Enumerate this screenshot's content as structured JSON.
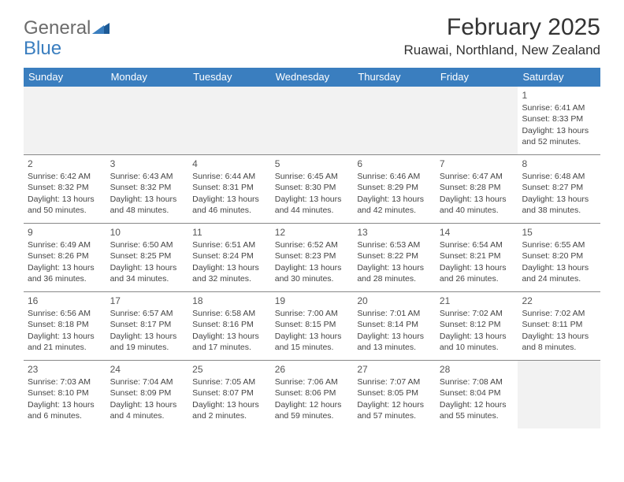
{
  "logo": {
    "text1": "General",
    "text2": "Blue"
  },
  "title": "February 2025",
  "location": "Ruawai, Northland, New Zealand",
  "colors": {
    "header_bg": "#3a7ebf",
    "border": "#888888",
    "empty_bg": "#f2f2f2",
    "text": "#444444"
  },
  "dayNames": [
    "Sunday",
    "Monday",
    "Tuesday",
    "Wednesday",
    "Thursday",
    "Friday",
    "Saturday"
  ],
  "weeks": [
    [
      {
        "empty": true
      },
      {
        "empty": true
      },
      {
        "empty": true
      },
      {
        "empty": true
      },
      {
        "empty": true
      },
      {
        "empty": true
      },
      {
        "day": "1",
        "sunrise": "Sunrise: 6:41 AM",
        "sunset": "Sunset: 8:33 PM",
        "daylight": "Daylight: 13 hours and 52 minutes."
      }
    ],
    [
      {
        "day": "2",
        "sunrise": "Sunrise: 6:42 AM",
        "sunset": "Sunset: 8:32 PM",
        "daylight": "Daylight: 13 hours and 50 minutes."
      },
      {
        "day": "3",
        "sunrise": "Sunrise: 6:43 AM",
        "sunset": "Sunset: 8:32 PM",
        "daylight": "Daylight: 13 hours and 48 minutes."
      },
      {
        "day": "4",
        "sunrise": "Sunrise: 6:44 AM",
        "sunset": "Sunset: 8:31 PM",
        "daylight": "Daylight: 13 hours and 46 minutes."
      },
      {
        "day": "5",
        "sunrise": "Sunrise: 6:45 AM",
        "sunset": "Sunset: 8:30 PM",
        "daylight": "Daylight: 13 hours and 44 minutes."
      },
      {
        "day": "6",
        "sunrise": "Sunrise: 6:46 AM",
        "sunset": "Sunset: 8:29 PM",
        "daylight": "Daylight: 13 hours and 42 minutes."
      },
      {
        "day": "7",
        "sunrise": "Sunrise: 6:47 AM",
        "sunset": "Sunset: 8:28 PM",
        "daylight": "Daylight: 13 hours and 40 minutes."
      },
      {
        "day": "8",
        "sunrise": "Sunrise: 6:48 AM",
        "sunset": "Sunset: 8:27 PM",
        "daylight": "Daylight: 13 hours and 38 minutes."
      }
    ],
    [
      {
        "day": "9",
        "sunrise": "Sunrise: 6:49 AM",
        "sunset": "Sunset: 8:26 PM",
        "daylight": "Daylight: 13 hours and 36 minutes."
      },
      {
        "day": "10",
        "sunrise": "Sunrise: 6:50 AM",
        "sunset": "Sunset: 8:25 PM",
        "daylight": "Daylight: 13 hours and 34 minutes."
      },
      {
        "day": "11",
        "sunrise": "Sunrise: 6:51 AM",
        "sunset": "Sunset: 8:24 PM",
        "daylight": "Daylight: 13 hours and 32 minutes."
      },
      {
        "day": "12",
        "sunrise": "Sunrise: 6:52 AM",
        "sunset": "Sunset: 8:23 PM",
        "daylight": "Daylight: 13 hours and 30 minutes."
      },
      {
        "day": "13",
        "sunrise": "Sunrise: 6:53 AM",
        "sunset": "Sunset: 8:22 PM",
        "daylight": "Daylight: 13 hours and 28 minutes."
      },
      {
        "day": "14",
        "sunrise": "Sunrise: 6:54 AM",
        "sunset": "Sunset: 8:21 PM",
        "daylight": "Daylight: 13 hours and 26 minutes."
      },
      {
        "day": "15",
        "sunrise": "Sunrise: 6:55 AM",
        "sunset": "Sunset: 8:20 PM",
        "daylight": "Daylight: 13 hours and 24 minutes."
      }
    ],
    [
      {
        "day": "16",
        "sunrise": "Sunrise: 6:56 AM",
        "sunset": "Sunset: 8:18 PM",
        "daylight": "Daylight: 13 hours and 21 minutes."
      },
      {
        "day": "17",
        "sunrise": "Sunrise: 6:57 AM",
        "sunset": "Sunset: 8:17 PM",
        "daylight": "Daylight: 13 hours and 19 minutes."
      },
      {
        "day": "18",
        "sunrise": "Sunrise: 6:58 AM",
        "sunset": "Sunset: 8:16 PM",
        "daylight": "Daylight: 13 hours and 17 minutes."
      },
      {
        "day": "19",
        "sunrise": "Sunrise: 7:00 AM",
        "sunset": "Sunset: 8:15 PM",
        "daylight": "Daylight: 13 hours and 15 minutes."
      },
      {
        "day": "20",
        "sunrise": "Sunrise: 7:01 AM",
        "sunset": "Sunset: 8:14 PM",
        "daylight": "Daylight: 13 hours and 13 minutes."
      },
      {
        "day": "21",
        "sunrise": "Sunrise: 7:02 AM",
        "sunset": "Sunset: 8:12 PM",
        "daylight": "Daylight: 13 hours and 10 minutes."
      },
      {
        "day": "22",
        "sunrise": "Sunrise: 7:02 AM",
        "sunset": "Sunset: 8:11 PM",
        "daylight": "Daylight: 13 hours and 8 minutes."
      }
    ],
    [
      {
        "day": "23",
        "sunrise": "Sunrise: 7:03 AM",
        "sunset": "Sunset: 8:10 PM",
        "daylight": "Daylight: 13 hours and 6 minutes."
      },
      {
        "day": "24",
        "sunrise": "Sunrise: 7:04 AM",
        "sunset": "Sunset: 8:09 PM",
        "daylight": "Daylight: 13 hours and 4 minutes."
      },
      {
        "day": "25",
        "sunrise": "Sunrise: 7:05 AM",
        "sunset": "Sunset: 8:07 PM",
        "daylight": "Daylight: 13 hours and 2 minutes."
      },
      {
        "day": "26",
        "sunrise": "Sunrise: 7:06 AM",
        "sunset": "Sunset: 8:06 PM",
        "daylight": "Daylight: 12 hours and 59 minutes."
      },
      {
        "day": "27",
        "sunrise": "Sunrise: 7:07 AM",
        "sunset": "Sunset: 8:05 PM",
        "daylight": "Daylight: 12 hours and 57 minutes."
      },
      {
        "day": "28",
        "sunrise": "Sunrise: 7:08 AM",
        "sunset": "Sunset: 8:04 PM",
        "daylight": "Daylight: 12 hours and 55 minutes."
      },
      {
        "empty": true
      }
    ]
  ]
}
